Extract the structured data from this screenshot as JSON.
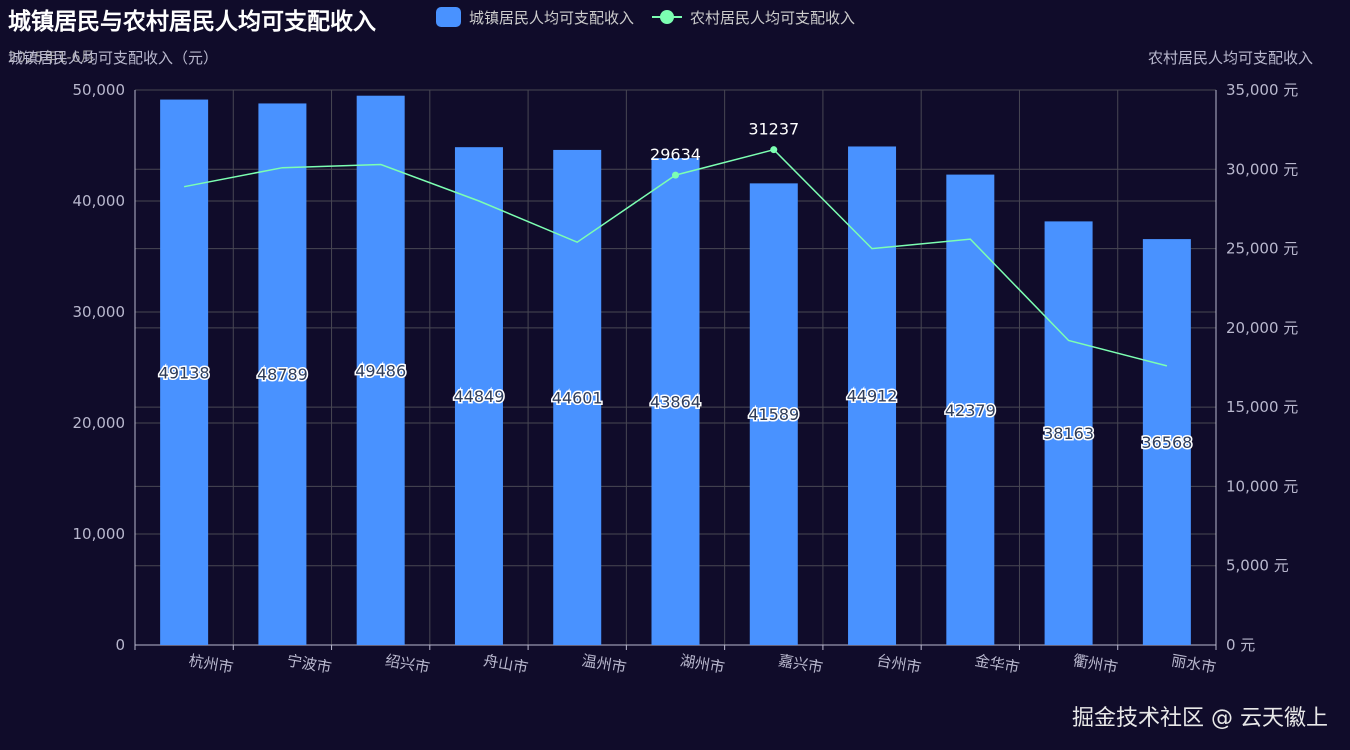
{
  "title": "城镇居民与农村居民人均可支配收入",
  "subtitle": "2025年1-6月",
  "legend": {
    "bar": "城镇居民人均可支配收入",
    "line": "农村居民人均可支配收入"
  },
  "watermark": "掘金技术社区 @ 云天徽上",
  "colors": {
    "background": "#100c2a",
    "bar": "#4992ff",
    "line": "#7cffb2",
    "grid": "#484753",
    "axis": "#b9b8ce"
  },
  "chart_data": {
    "type": "bar",
    "categories": [
      "杭州市",
      "宁波市",
      "绍兴市",
      "舟山市",
      "温州市",
      "湖州市",
      "嘉兴市",
      "台州市",
      "金华市",
      "衢州市",
      "丽水市"
    ],
    "series": [
      {
        "name": "城镇居民人均可支配收入",
        "type": "bar",
        "yAxis": "left",
        "values": [
          49138,
          48789,
          49486,
          44849,
          44601,
          43864,
          41589,
          44912,
          42379,
          38163,
          36568
        ]
      },
      {
        "name": "农村居民人均可支配收入",
        "type": "line",
        "yAxis": "right",
        "values": [
          28900,
          30100,
          30300,
          28000,
          25400,
          29634,
          31237,
          25000,
          25600,
          19200,
          17600
        ]
      }
    ],
    "yAxisLeft": {
      "name": "城镇居民人均可支配收入（元）",
      "min": 0,
      "max": 50000,
      "ticks": [
        "0",
        "10,000",
        "20,000",
        "30,000",
        "40,000",
        "50,000"
      ]
    },
    "yAxisRight": {
      "name": "农村居民人均可支配收入",
      "min": 0,
      "max": 35000,
      "ticks": [
        "0 元",
        "5,000 元",
        "10,000 元",
        "15,000 元",
        "20,000 元",
        "25,000 元",
        "30,000 元",
        "35,000 元"
      ]
    },
    "grid": true,
    "legend_position": "top"
  }
}
